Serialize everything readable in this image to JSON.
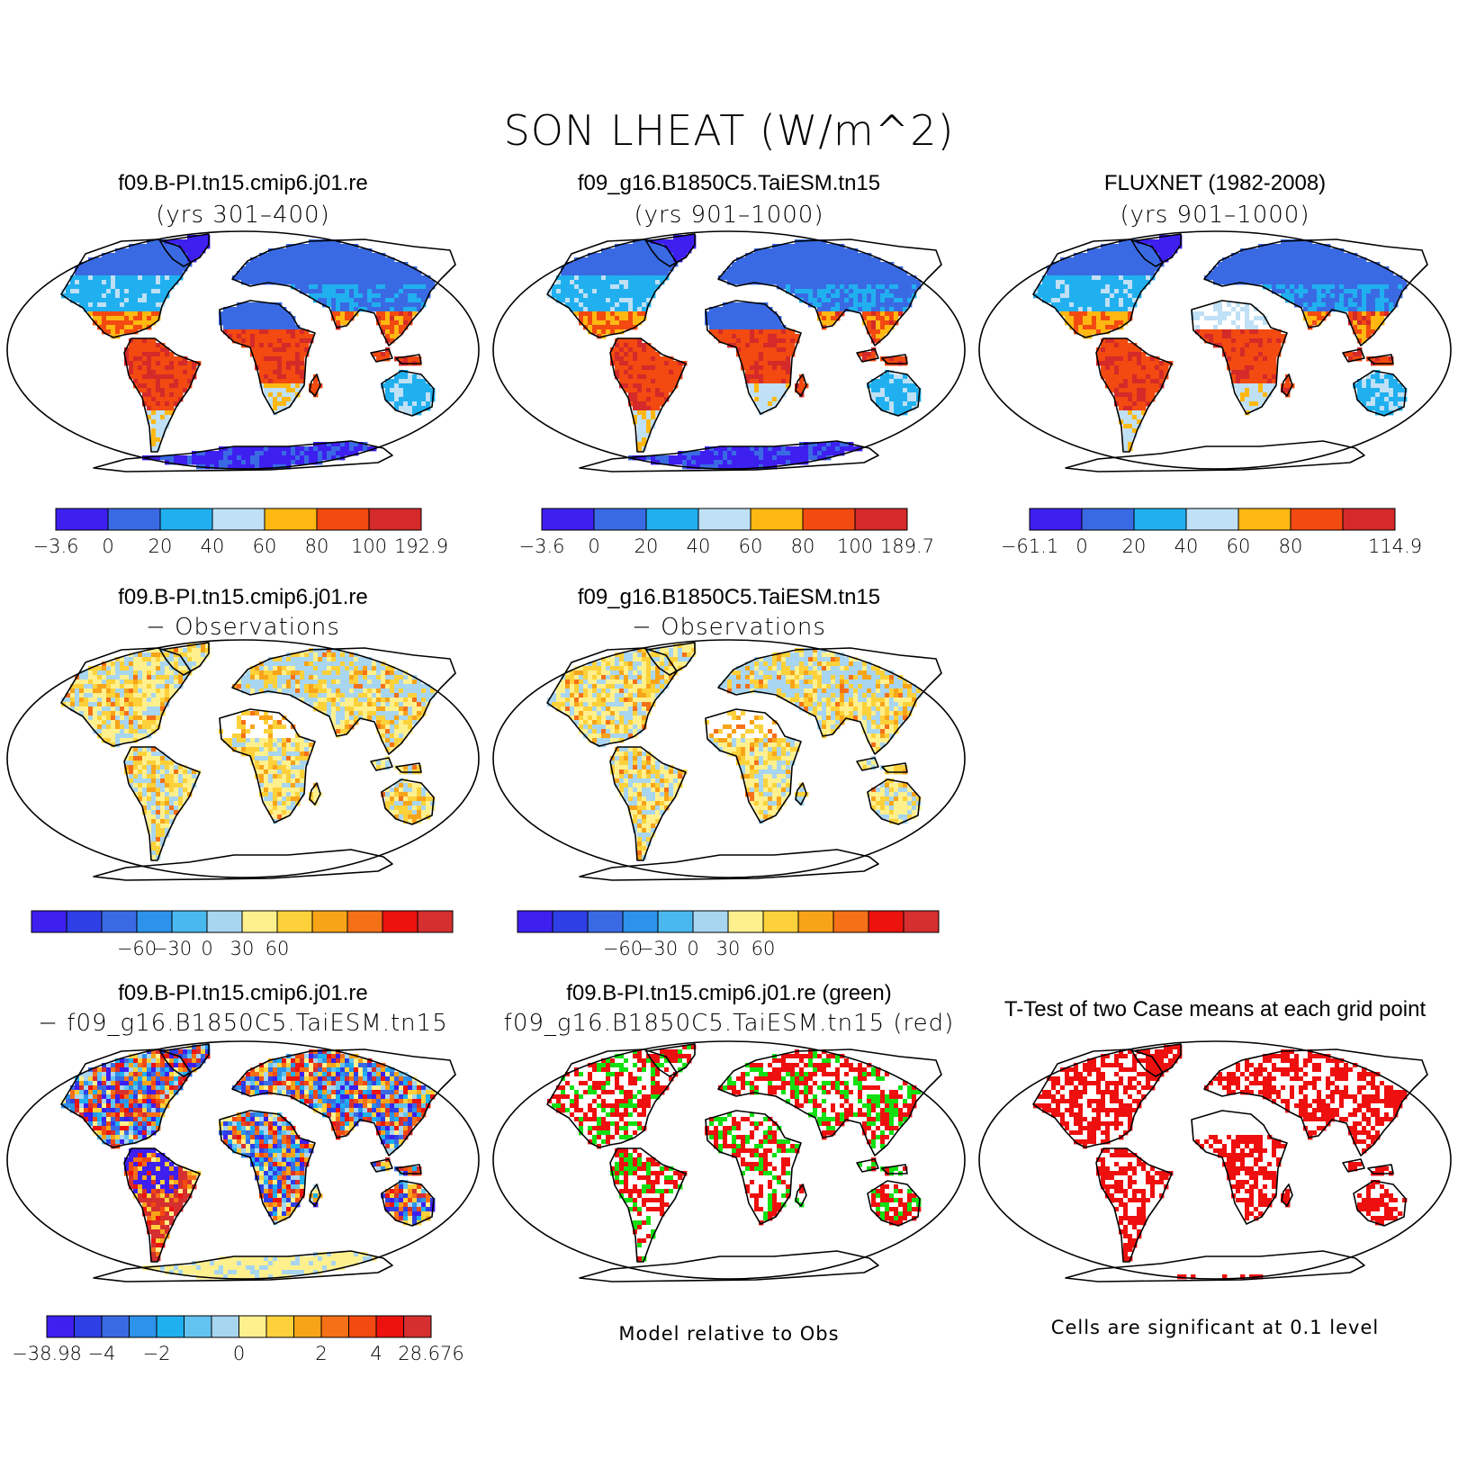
{
  "title": "SON LHEAT (W/m^2)",
  "colors": {
    "seq": [
      "#3d1ff0",
      "#3a6ae3",
      "#20b0f0",
      "#bfe0f5",
      "#ffb812",
      "#f24a10",
      "#d42a2a"
    ],
    "diff": [
      "#3d1ff0",
      "#2f3fe6",
      "#3a6ae3",
      "#2c92ea",
      "#49b8ef",
      "#a8d5f0",
      "#fff08e",
      "#fcd13a",
      "#f7a418",
      "#f57016",
      "#ec130f",
      "#d52f2f"
    ],
    "diff2": [
      "#3d1ff0",
      "#2f3fe6",
      "#3a6ae3",
      "#2c92ea",
      "#1fb0f0",
      "#63c3f0",
      "#a8d5f0",
      "#fff08e",
      "#fcd13a",
      "#f7a418",
      "#f57016",
      "#f24a10",
      "#ec130f",
      "#d52f2f"
    ],
    "green": "#12e012",
    "red": "#ee0f0f"
  },
  "panels": [
    {
      "title1": "f09.B-PI.tn15.cmip6.j01.re",
      "title2": "(yrs 301–400)",
      "kind": "seq",
      "labels": [
        "−3.6",
        "0",
        "20",
        "40",
        "60",
        "80",
        "100",
        "192.9"
      ]
    },
    {
      "title1": "f09_g16.B1850C5.TaiESM.tn15",
      "title2": "(yrs 901–1000)",
      "kind": "seq",
      "labels": [
        "−3.6",
        "0",
        "20",
        "40",
        "60",
        "80",
        "100",
        "189.7"
      ]
    },
    {
      "title1": "FLUXNET (1982-2008)",
      "title2": "(yrs 901–1000)",
      "kind": "obs",
      "labels": [
        "−61.1",
        "0",
        "20",
        "40",
        "60",
        "80",
        "",
        "114.9"
      ]
    },
    {
      "title1": "f09.B-PI.tn15.cmip6.j01.re",
      "title2": "− Observations",
      "kind": "diff",
      "labels": [
        "−60",
        "−30",
        "0",
        "30",
        "60"
      ]
    },
    {
      "title1": "f09_g16.B1850C5.TaiESM.tn15",
      "title2": "− Observations",
      "kind": "diff",
      "labels": [
        "−60",
        "−30",
        "0",
        "30",
        "60"
      ]
    },
    {
      "title1": "f09.B-PI.tn15.cmip6.j01.re",
      "title2": "− f09_g16.B1850C5.TaiESM.tn15",
      "kind": "diff2",
      "labels": [
        "−38.98",
        "−4",
        "−2",
        "0",
        "2",
        "4",
        "28.676"
      ]
    },
    {
      "title1": "f09.B-PI.tn15.cmip6.j01.re (green)",
      "title2": "f09_g16.B1850C5.TaiESM.tn15 (red)",
      "kind": "rg",
      "note": "Model relative to Obs"
    },
    {
      "title1": "T-Test of two Case means at each grid point",
      "title2": "",
      "kind": "ttest",
      "note": "Cells are significant at 0.1 level"
    }
  ]
}
